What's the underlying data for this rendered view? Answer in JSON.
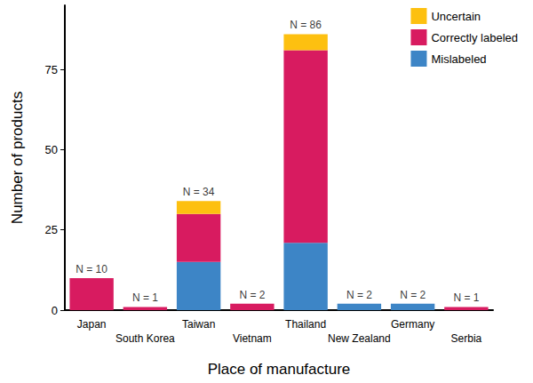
{
  "chart_data": {
    "type": "bar",
    "stacked": true,
    "x_label": "Place of manufacture",
    "y_label": "Number of products",
    "categories": [
      "Japan",
      "South Korea",
      "Taiwan",
      "Vietnam",
      "Thailand",
      "New Zealand",
      "Germany",
      "Serbia"
    ],
    "series": [
      {
        "name": "Mislabeled",
        "color": "#3d85c6",
        "values": [
          0,
          0,
          15,
          0,
          21,
          2,
          2,
          0
        ]
      },
      {
        "name": "Correctly labeled",
        "color": "#d81b60",
        "values": [
          10,
          1,
          15,
          2,
          60,
          0,
          0,
          1
        ]
      },
      {
        "name": "Uncertain",
        "color": "#fdc010",
        "values": [
          0,
          0,
          4,
          0,
          5,
          0,
          0,
          0
        ]
      }
    ],
    "annotations": [
      "N = 10",
      "N = 1",
      "N = 34",
      "N = 2",
      "N = 86",
      "N = 2",
      "N = 2",
      "N = 1"
    ],
    "ylim": [
      0,
      95
    ],
    "yticks": [
      0,
      25,
      50,
      75
    ],
    "grid": false,
    "legend": "top-right"
  }
}
